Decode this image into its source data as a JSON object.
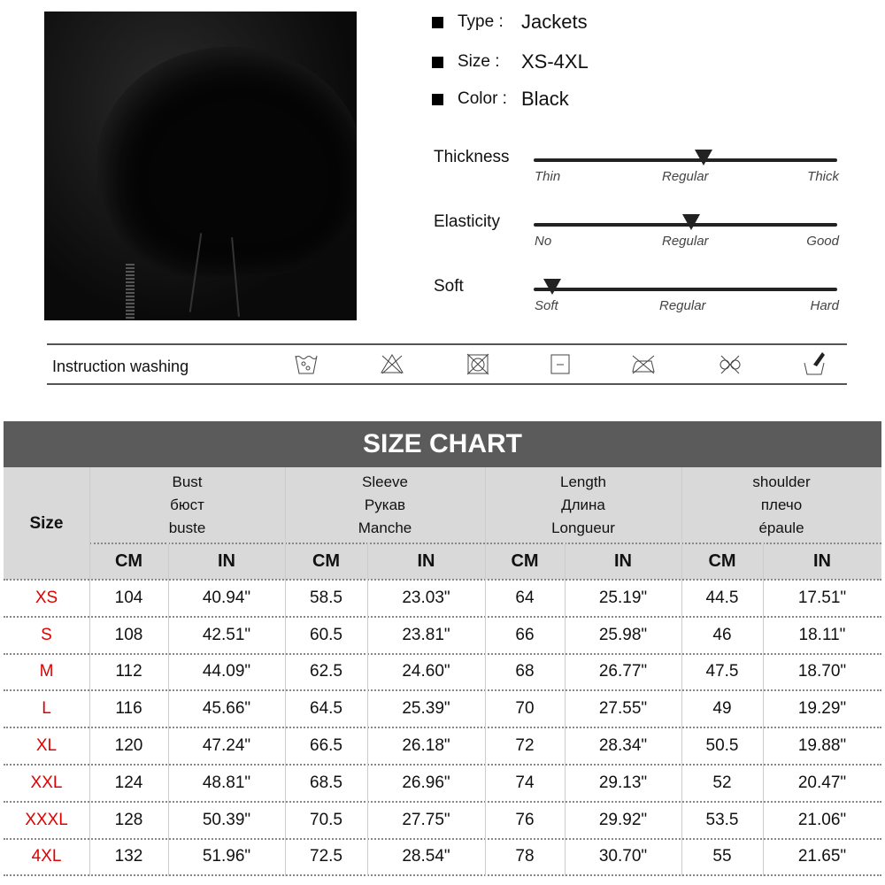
{
  "product": {
    "type_label": "Type :",
    "type_value": "Jackets",
    "size_label": "Size :",
    "size_value": "XS-4XL",
    "color_label": "Color :",
    "color_value": "Black"
  },
  "ratings": [
    {
      "label": "Thickness",
      "min": "Thin",
      "mid": "Regular",
      "max": "Thick",
      "level": 0.56
    },
    {
      "label": "Elasticity",
      "min": "No",
      "mid": "Regular",
      "max": "Good",
      "level": 0.52
    },
    {
      "label": "Soft",
      "min": "Soft",
      "mid": "Regular",
      "max": "Hard",
      "level": 0.06
    }
  ],
  "washing": {
    "label": "Instruction washing",
    "icons": [
      "hand-wash-30-icon",
      "no-bleach-icon",
      "no-tumble-dry-icon",
      "dry-flat-icon",
      "no-iron-icon",
      "no-dry-clean-icon",
      "hand-wash-icon"
    ]
  },
  "size_chart": {
    "title": "SIZE CHART",
    "size_header": "Size",
    "groups": [
      {
        "lines": [
          "Bust",
          "бюст",
          "buste"
        ]
      },
      {
        "lines": [
          "Sleeve",
          "Рукав",
          "Manche"
        ]
      },
      {
        "lines": [
          "Length",
          "Длина",
          "Longueur"
        ]
      },
      {
        "lines": [
          "shoulder",
          "плечо",
          "épaule"
        ]
      }
    ],
    "units": [
      "CM",
      "IN"
    ],
    "rows": [
      [
        "XS",
        "104",
        "40.94\"",
        "58.5",
        "23.03\"",
        "64",
        "25.19\"",
        "44.5",
        "17.51\""
      ],
      [
        "S",
        "108",
        "42.51\"",
        "60.5",
        "23.81\"",
        "66",
        "25.98\"",
        "46",
        "18.11\""
      ],
      [
        "M",
        "112",
        "44.09\"",
        "62.5",
        "24.60\"",
        "68",
        "26.77\"",
        "47.5",
        "18.70\""
      ],
      [
        "L",
        "116",
        "45.66\"",
        "64.5",
        "25.39\"",
        "70",
        "27.55\"",
        "49",
        "19.29\""
      ],
      [
        "XL",
        "120",
        "47.24\"",
        "66.5",
        "26.18\"",
        "72",
        "28.34\"",
        "50.5",
        "19.88\""
      ],
      [
        "XXL",
        "124",
        "48.81\"",
        "68.5",
        "26.96\"",
        "74",
        "29.13\"",
        "52",
        "20.47\""
      ],
      [
        "XXXL",
        "128",
        "50.39\"",
        "70.5",
        "27.75\"",
        "76",
        "29.92\"",
        "53.5",
        "21.06\""
      ],
      [
        "4XL",
        "132",
        "51.96\"",
        "72.5",
        "28.54\"",
        "78",
        "30.70\"",
        "55",
        "21.65\""
      ]
    ],
    "size_color": "#e00000",
    "header_color": "#5b5b5b"
  }
}
